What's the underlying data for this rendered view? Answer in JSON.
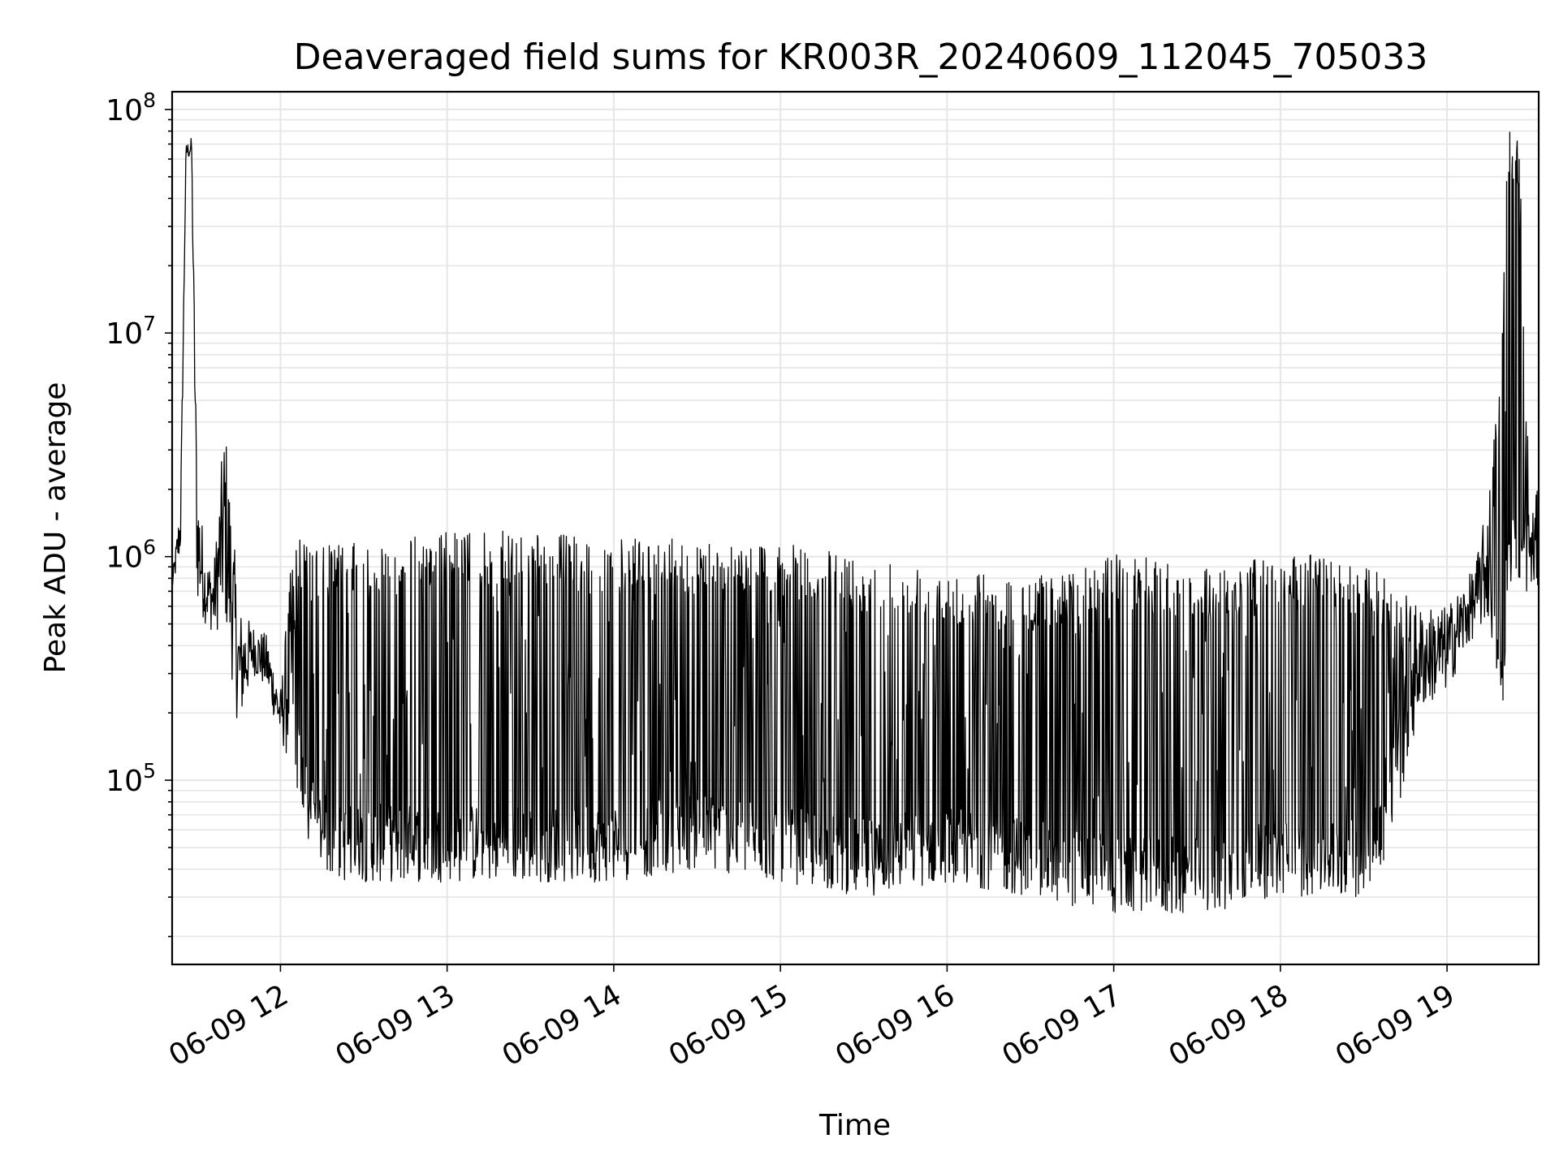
{
  "chart_data": {
    "type": "line",
    "title": "Deaveraged field sums for KR003R_20240609_112045_705033",
    "xlabel": "Time",
    "ylabel": "Peak ADU - average",
    "yscale": "log",
    "grid": true,
    "line_color": "#000000",
    "grid_color": "#e6e6e6",
    "xlim": [
      "06-09 11:21",
      "06-09 19:33"
    ],
    "ylim": [
      15000,
      120000000
    ],
    "x_ticks": [
      "06-09 12",
      "06-09 13",
      "06-09 14",
      "06-09 15",
      "06-09 16",
      "06-09 17",
      "06-09 18",
      "06-09 19"
    ],
    "y_ticks": [
      {
        "base": "10",
        "exp": "5",
        "value": 100000
      },
      {
        "base": "10",
        "exp": "6",
        "value": 1000000
      },
      {
        "base": "10",
        "exp": "7",
        "value": 10000000
      },
      {
        "base": "10",
        "exp": "8",
        "value": 100000000
      }
    ],
    "series": [
      {
        "description_points": "approximate envelope of the noisy trace (time, upper value, lower value)",
        "x": [
          "11:21",
          "11:24",
          "11:26",
          "11:28",
          "11:30",
          "11:33",
          "11:36",
          "11:40",
          "11:45",
          "11:50",
          "11:55",
          "12:00",
          "12:05",
          "12:10",
          "12:15",
          "12:20",
          "12:30",
          "13:00",
          "13:30",
          "14:00",
          "14:30",
          "15:00",
          "15:30",
          "16:00",
          "16:30",
          "17:00",
          "17:30",
          "18:00",
          "18:15",
          "18:30",
          "18:40",
          "18:50",
          "19:00",
          "19:10",
          "19:15",
          "19:20",
          "19:22",
          "19:26",
          "19:30",
          "19:33"
        ],
        "upper": [
          800000,
          1800000,
          70000000,
          75000000,
          2500000,
          1000000,
          900000,
          4300000,
          600000,
          500000,
          450000,
          250000,
          1400000,
          1100000,
          1200000,
          1150000,
          1150000,
          1300000,
          1300000,
          1200000,
          1200000,
          1150000,
          1000000,
          900000,
          800000,
          1050000,
          900000,
          1000000,
          1050000,
          900000,
          800000,
          600000,
          600000,
          900000,
          1900000,
          12000000,
          80000000,
          75000000,
          1500000,
          2100000
        ],
        "lower": [
          700000,
          1000000,
          60000000,
          60000000,
          600000,
          500000,
          450000,
          500000,
          160000,
          300000,
          250000,
          150000,
          100000,
          50000,
          40000,
          35000,
          35000,
          35000,
          35000,
          35000,
          40000,
          35000,
          30000,
          35000,
          30000,
          25000,
          25000,
          30000,
          30000,
          30000,
          50000,
          200000,
          250000,
          450000,
          500000,
          180000,
          800000,
          600000,
          700000,
          700000
        ]
      }
    ]
  }
}
